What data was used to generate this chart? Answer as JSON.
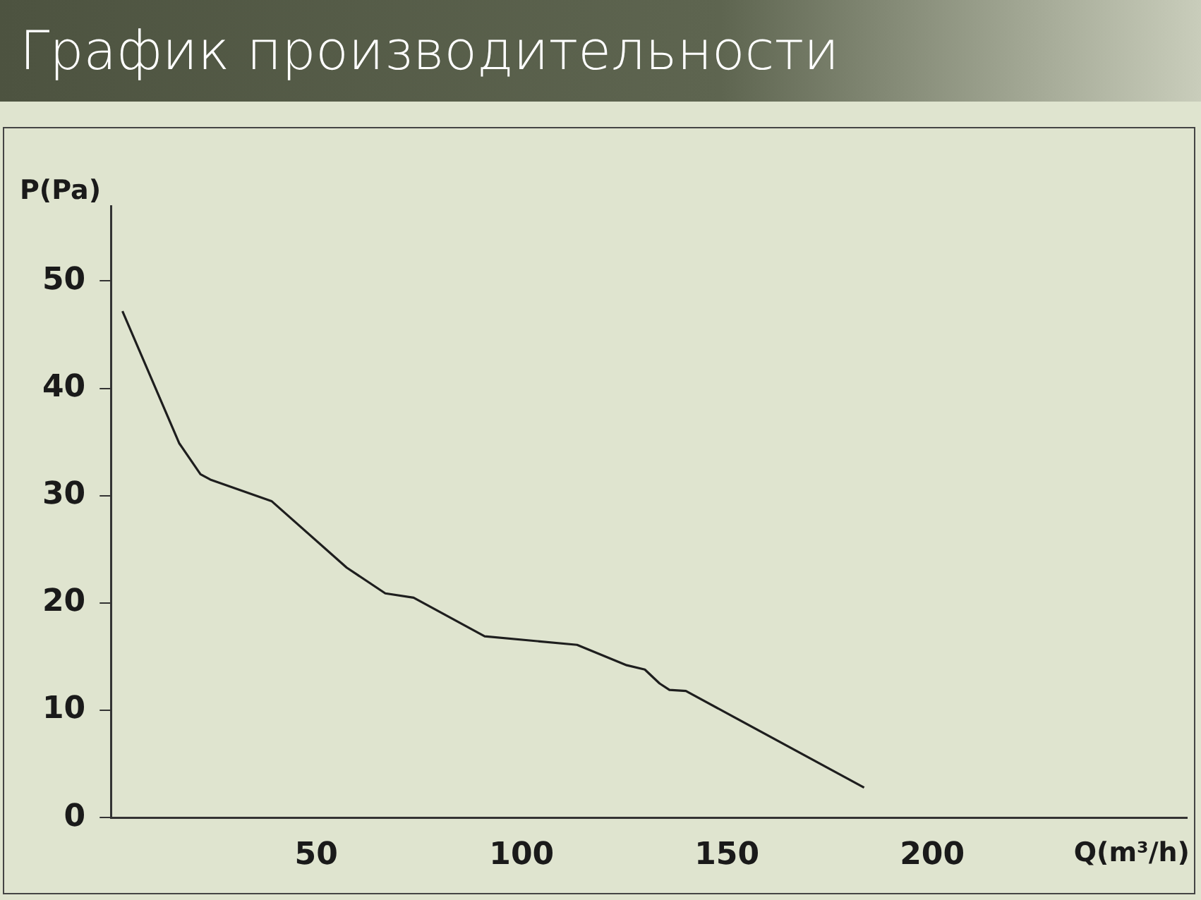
{
  "chart_data": {
    "type": "line",
    "title": "График  производительности",
    "xlabel": "Q(m³/h)",
    "ylabel": "P(Pa)",
    "series": [
      {
        "color": "#1e1e1e",
        "x": [
          2.8,
          16.6,
          21.8,
          24.2,
          39.1,
          57.4,
          66.8,
          73.7,
          91,
          113.5,
          125.6,
          130,
          133.6,
          136,
          140,
          183.4
        ],
        "values": [
          47.2,
          34.9,
          32.0,
          31.5,
          29.5,
          23.3,
          20.9,
          20.5,
          16.9,
          16.1,
          14.2,
          13.8,
          12.5,
          11.9,
          11.8,
          2.8
        ]
      }
    ],
    "xlim": [
      0,
      262
    ],
    "ylim": [
      0,
      57
    ],
    "xticks": [
      50,
      100,
      150,
      200
    ],
    "yticks": [
      0,
      10,
      20,
      30,
      40,
      50
    ],
    "grid": false,
    "legend": false,
    "marker": "none",
    "line_style": "solid"
  }
}
